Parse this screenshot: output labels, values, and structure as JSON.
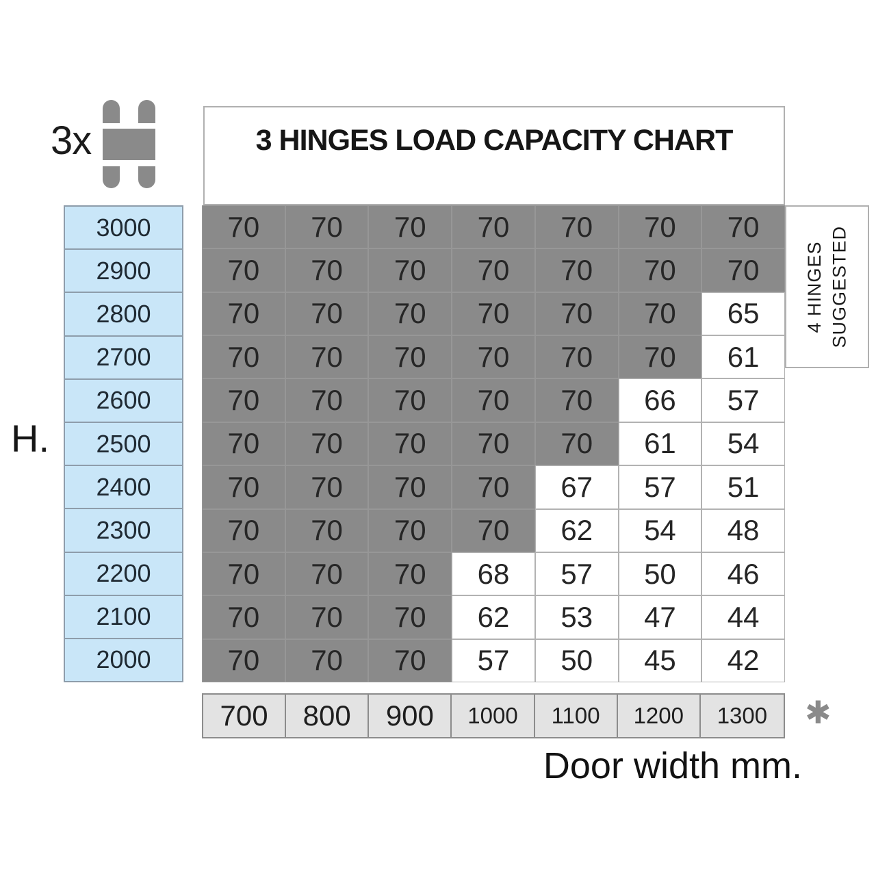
{
  "hinge_count_label": "3x",
  "chart_title": "3 HINGES LOAD CAPACITY CHART",
  "height_axis_label": "H.",
  "width_axis_label": "Door width mm.",
  "footnote_marker": "✱",
  "side_note_line1": "4 HINGES",
  "side_note_line2": "SUGGESTED",
  "colors": {
    "capacity_max_cell_bg": "#8a8a8a",
    "capacity_reduced_cell_bg": "#ffffff",
    "height_cell_bg": "#c9e6f8",
    "width_header_bg": "#e3e3e3",
    "hinge_icon_gray": "#8a8a8a"
  },
  "chart_data": {
    "type": "heatmap",
    "title": "3 HINGES LOAD CAPACITY CHART",
    "xlabel": "Door width mm.",
    "ylabel": "H.",
    "x_categories": [
      "700",
      "800",
      "900",
      "1000",
      "1100",
      "1200",
      "1300"
    ],
    "y_categories": [
      "3000",
      "2900",
      "2800",
      "2700",
      "2600",
      "2500",
      "2400",
      "2300",
      "2200",
      "2100",
      "2000"
    ],
    "values": [
      [
        70,
        70,
        70,
        70,
        70,
        70,
        70
      ],
      [
        70,
        70,
        70,
        70,
        70,
        70,
        70
      ],
      [
        70,
        70,
        70,
        70,
        70,
        70,
        65
      ],
      [
        70,
        70,
        70,
        70,
        70,
        70,
        61
      ],
      [
        70,
        70,
        70,
        70,
        70,
        66,
        57
      ],
      [
        70,
        70,
        70,
        70,
        70,
        61,
        54
      ],
      [
        70,
        70,
        70,
        70,
        67,
        57,
        51
      ],
      [
        70,
        70,
        70,
        70,
        62,
        54,
        48
      ],
      [
        70,
        70,
        70,
        68,
        57,
        50,
        46
      ],
      [
        70,
        70,
        70,
        62,
        53,
        47,
        44
      ],
      [
        70,
        70,
        70,
        57,
        50,
        45,
        42
      ]
    ],
    "gray_cell_counts_per_row": [
      7,
      7,
      6,
      6,
      5,
      5,
      4,
      4,
      3,
      3,
      3
    ],
    "annotation": "4 HINGES SUGGESTED",
    "footnote_marker": "✱"
  }
}
